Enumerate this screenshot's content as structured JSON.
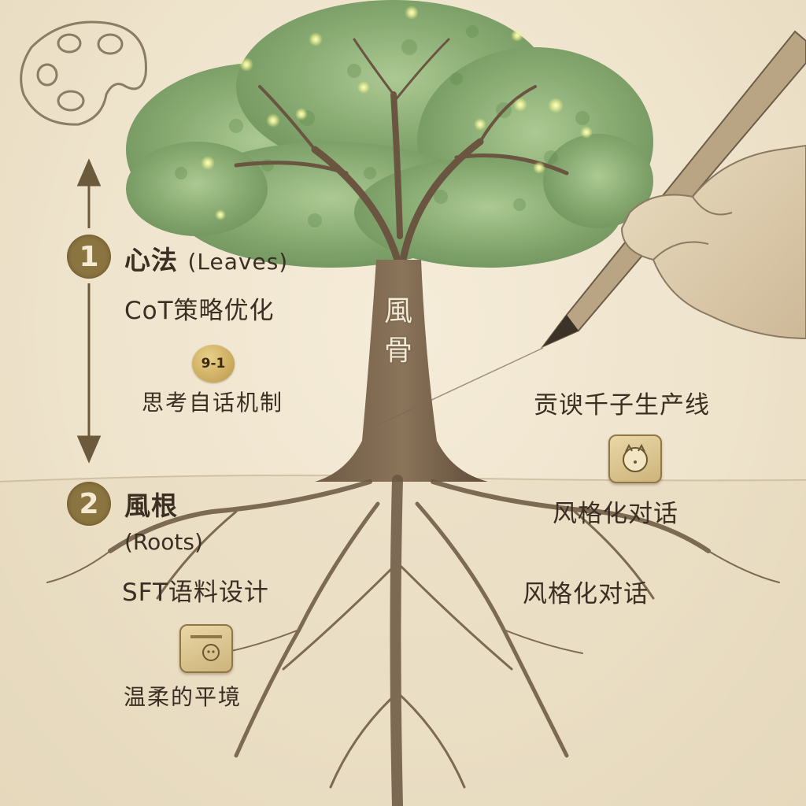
{
  "trunk": {
    "line1": "風",
    "line2": "骨"
  },
  "left": {
    "step1": {
      "number": "1",
      "title": "心法",
      "subtitle": "(Leaves)",
      "item1": "CoT策略优化",
      "badge": "9-1",
      "item2": "思考自话机制"
    },
    "step2": {
      "number": "2",
      "title": "風根",
      "subtitle": "(Roots)",
      "item1": "SFT语料设计",
      "item2": "温柔的平境"
    }
  },
  "right": {
    "item1": "贡谀千子生产线",
    "item2": "风格化对话",
    "item3": "风格化对话"
  },
  "icons": {
    "palette": "palette-icon",
    "arrow_up": "arrow-up-icon",
    "arrow_down": "arrow-down-icon",
    "coin": "coin-icon",
    "tile_right": "face-tile-icon",
    "tile_left": "note-tile-icon"
  },
  "colors": {
    "accent": "#8a7440",
    "ink": "#3a2f22",
    "leaf": "#7fa56a",
    "firefly": "#f3f59a",
    "paper": "#efe5d0"
  }
}
